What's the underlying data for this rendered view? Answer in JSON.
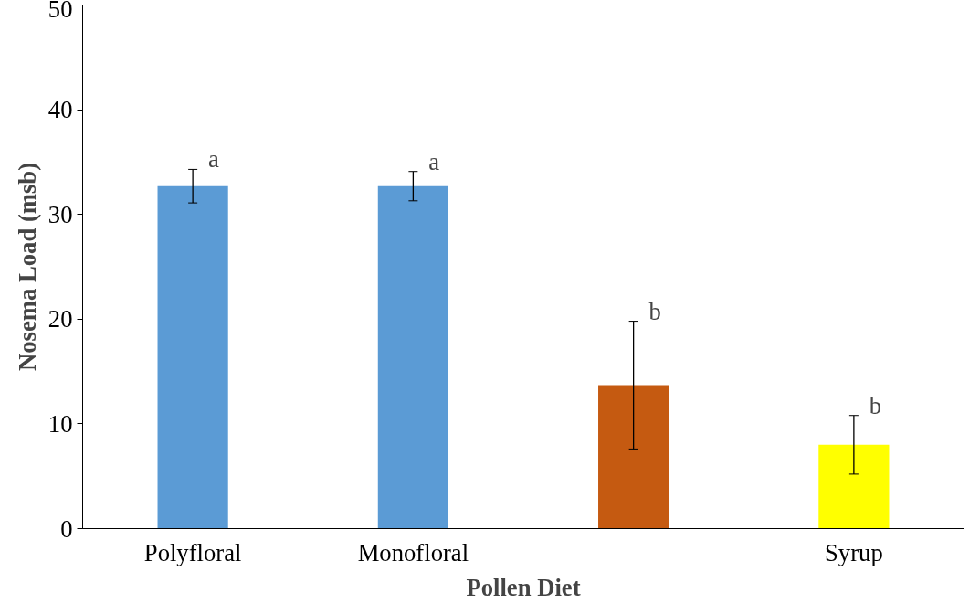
{
  "chart_data": {
    "type": "bar",
    "xlabel": "Pollen Diet",
    "ylabel": "Nosema Load (msb)",
    "categories": [
      "Polyfloral",
      "Monofloral",
      null,
      "Syrup"
    ],
    "values": [
      32.7,
      32.7,
      13.7,
      8.0
    ],
    "colors": [
      "#5b9bd5",
      "#5b9bd5",
      "#c55a11",
      "#ffff00"
    ],
    "errors": [
      1.6,
      1.4,
      6.1,
      2.8
    ],
    "ylim": [
      0,
      50
    ],
    "yticks": [
      0,
      10,
      20,
      30,
      40,
      50
    ],
    "grid": false,
    "annotations": [
      "a",
      "a",
      "b",
      "b"
    ]
  }
}
